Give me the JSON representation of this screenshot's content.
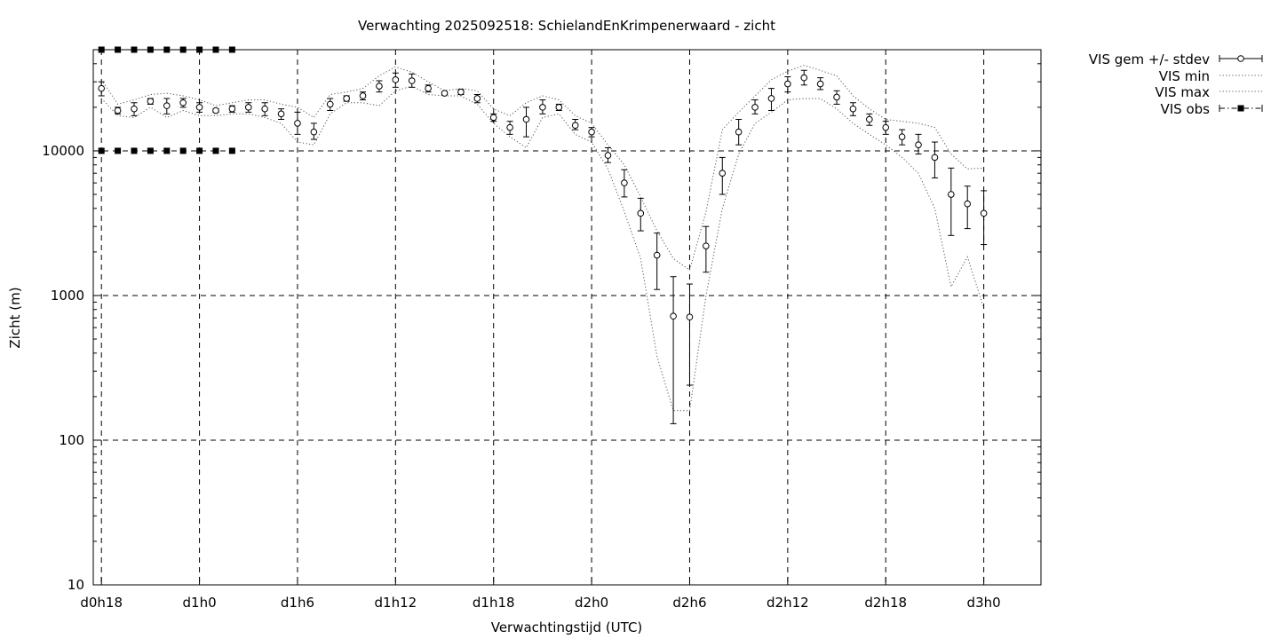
{
  "chart_data": {
    "type": "line",
    "title": "Verwachting 2025092518: SchielandEnKrimpenerwaard - zicht",
    "xlabel": "Verwachtingstijd (UTC)",
    "ylabel": "Zicht (m)",
    "y_scale": "log",
    "ylim": [
      10,
      50000
    ],
    "xlim": [
      -0.5,
      57.5
    ],
    "y_ticks": [
      {
        "value": 10,
        "label": "10"
      },
      {
        "value": 100,
        "label": "100"
      },
      {
        "value": 1000,
        "label": "1000"
      },
      {
        "value": 10000,
        "label": "10000"
      }
    ],
    "x_ticks": [
      {
        "value": 0,
        "label": "d0h18"
      },
      {
        "value": 6,
        "label": "d1h0"
      },
      {
        "value": 12,
        "label": "d1h6"
      },
      {
        "value": 18,
        "label": "d1h12"
      },
      {
        "value": 24,
        "label": "d1h18"
      },
      {
        "value": 30,
        "label": "d2h0"
      },
      {
        "value": 36,
        "label": "d2h6"
      },
      {
        "value": 42,
        "label": "d2h12"
      },
      {
        "value": 48,
        "label": "d2h18"
      },
      {
        "value": 54,
        "label": "d3h0"
      }
    ],
    "grid": true,
    "legend_position": "outside-right",
    "legend": [
      {
        "label": "VIS gem +/- stdev",
        "style": "errorbar"
      },
      {
        "label": "VIS min",
        "style": "dotted"
      },
      {
        "label": "VIS max",
        "style": "dotted"
      },
      {
        "label": "VIS obs",
        "style": "dashdot-squares"
      }
    ],
    "series_mean": {
      "name": "VIS gem +/- stdev",
      "x": [
        0,
        1,
        2,
        3,
        4,
        5,
        6,
        7,
        8,
        9,
        10,
        11,
        12,
        13,
        14,
        15,
        16,
        17,
        18,
        19,
        20,
        21,
        22,
        23,
        24,
        25,
        26,
        27,
        28,
        29,
        30,
        31,
        32,
        33,
        34,
        35,
        36,
        37,
        38,
        39,
        40,
        41,
        42,
        43,
        44,
        45,
        46,
        47,
        48,
        49,
        50,
        51,
        52,
        53,
        54
      ],
      "mean": [
        27000,
        19000,
        19500,
        22000,
        20500,
        21500,
        20000,
        19000,
        19500,
        20000,
        19500,
        18000,
        15500,
        13500,
        21000,
        23000,
        24000,
        28000,
        31000,
        30500,
        27000,
        25000,
        25500,
        23000,
        17000,
        14500,
        16500,
        20000,
        20000,
        15000,
        13500,
        9300,
        6000,
        3700,
        1900,
        720,
        710,
        2200,
        7000,
        13500,
        20000,
        23000,
        29000,
        32000,
        29000,
        23500,
        19500,
        16500,
        14500,
        12500,
        11000,
        9000,
        5000,
        4300,
        3700
      ],
      "low": [
        24000,
        18000,
        17500,
        21000,
        18000,
        20000,
        18500,
        18500,
        18500,
        18500,
        17500,
        16500,
        13000,
        12000,
        19000,
        22000,
        22500,
        25500,
        27500,
        27500,
        25500,
        24500,
        24500,
        21500,
        16000,
        13000,
        12500,
        18000,
        19000,
        14000,
        12500,
        8300,
        4800,
        2800,
        1100,
        130,
        240,
        1450,
        5000,
        11000,
        18000,
        19000,
        25500,
        28500,
        26500,
        21000,
        17500,
        15000,
        13000,
        11000,
        9500,
        6500,
        2600,
        2900,
        2250
      ],
      "high": [
        30000,
        20000,
        21500,
        23000,
        23000,
        23000,
        21500,
        19500,
        20500,
        21500,
        21500,
        19500,
        18500,
        15500,
        23000,
        24000,
        25500,
        30500,
        34500,
        34000,
        28500,
        25500,
        26500,
        24500,
        18000,
        16000,
        20000,
        22500,
        21000,
        16500,
        14500,
        10500,
        7400,
        4700,
        2700,
        1350,
        1200,
        3000,
        9000,
        16500,
        22500,
        27000,
        32500,
        36000,
        32000,
        26000,
        21500,
        18000,
        16000,
        14000,
        13000,
        11500,
        7600,
        5700,
        5300
      ]
    },
    "series_min": {
      "name": "VIS min",
      "x": [
        0,
        1,
        2,
        3,
        4,
        5,
        6,
        7,
        8,
        9,
        10,
        11,
        12,
        13,
        14,
        15,
        16,
        17,
        18,
        19,
        20,
        21,
        22,
        23,
        24,
        25,
        26,
        27,
        28,
        29,
        30,
        31,
        32,
        33,
        34,
        35,
        36,
        37,
        38,
        39,
        40,
        41,
        42,
        43,
        44,
        45,
        46,
        47,
        48,
        49,
        50,
        51,
        52,
        53,
        54
      ],
      "values": [
        23000,
        17500,
        17000,
        20000,
        17000,
        19000,
        17500,
        17500,
        18000,
        18000,
        17000,
        15500,
        11500,
        11000,
        18000,
        21500,
        21500,
        20500,
        26000,
        28000,
        24500,
        24000,
        24000,
        21000,
        15500,
        12500,
        10500,
        17000,
        18000,
        13000,
        11500,
        7500,
        3800,
        1800,
        380,
        160,
        160,
        1000,
        4000,
        9500,
        15500,
        18500,
        22500,
        23000,
        23000,
        19500,
        15500,
        13000,
        11000,
        9000,
        7000,
        4000,
        1150,
        1850,
        820
      ]
    },
    "series_max": {
      "name": "VIS max",
      "x": [
        0,
        1,
        2,
        3,
        4,
        5,
        6,
        7,
        8,
        9,
        10,
        11,
        12,
        13,
        14,
        15,
        16,
        17,
        18,
        19,
        20,
        21,
        22,
        23,
        24,
        25,
        26,
        27,
        28,
        29,
        30,
        31,
        32,
        33,
        34,
        35,
        36,
        37,
        38,
        39,
        40,
        41,
        42,
        43,
        44,
        45,
        46,
        47,
        48,
        49,
        50,
        51,
        52,
        53,
        54
      ],
      "values": [
        31000,
        21000,
        22500,
        24500,
        25000,
        24000,
        22500,
        20500,
        21500,
        22500,
        22500,
        21000,
        20000,
        17000,
        24500,
        25500,
        27000,
        33000,
        38000,
        35000,
        30000,
        26000,
        27000,
        26000,
        19500,
        17500,
        21500,
        24000,
        22500,
        17500,
        15500,
        11000,
        8000,
        4800,
        2800,
        1800,
        1500,
        3800,
        14000,
        18500,
        24000,
        31000,
        35500,
        39000,
        36000,
        33000,
        24000,
        19500,
        16500,
        16000,
        15500,
        14500,
        9500,
        7500,
        7600
      ]
    },
    "series_obs": {
      "name": "VIS obs",
      "x": [
        0,
        1,
        2,
        3,
        4,
        5,
        6,
        7,
        8
      ],
      "high": [
        50000,
        50000,
        50000,
        50000,
        50000,
        50000,
        50000,
        50000,
        50000
      ],
      "low": [
        10000,
        10000,
        10000,
        10000,
        10000,
        10000,
        10000,
        10000,
        10000
      ]
    }
  }
}
